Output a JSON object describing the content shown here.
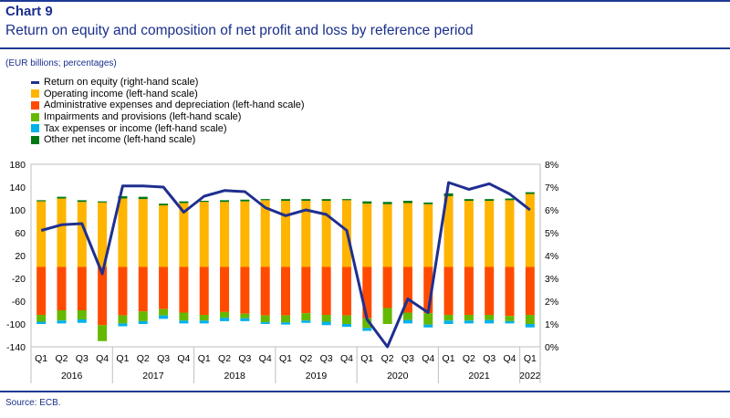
{
  "header": {
    "chart_label": "Chart 9",
    "title": "Return on equity and composition of net profit and loss by reference period",
    "units": "(EUR billions; percentages)"
  },
  "footer": {
    "source": "Source: ECB."
  },
  "colors": {
    "roe": "#1f2f8f",
    "operating_income": "#ffb400",
    "admin_expenses": "#ff4b00",
    "impairments": "#65b800",
    "tax": "#00b1ea",
    "other": "#007816",
    "rule": "#1f3a93"
  },
  "chart_data": {
    "type": "bar",
    "stacked": true,
    "legend_position": "top-left",
    "grid": false,
    "left_axis": {
      "ylim": [
        -140,
        180
      ],
      "ticks": [
        "180",
        "140",
        "100",
        "60",
        "20",
        "-20",
        "-60",
        "-100",
        "-140"
      ]
    },
    "right_axis": {
      "ylim": [
        0,
        8
      ],
      "ticks": [
        "8%",
        "7%",
        "6%",
        "5%",
        "4%",
        "3%",
        "2%",
        "1%",
        "0%"
      ]
    },
    "categories": [
      "Q1",
      "Q2",
      "Q3",
      "Q4",
      "Q1",
      "Q2",
      "Q3",
      "Q4",
      "Q1",
      "Q2",
      "Q3",
      "Q4",
      "Q1",
      "Q2",
      "Q3",
      "Q4",
      "Q1",
      "Q2",
      "Q3",
      "Q4",
      "Q1",
      "Q2",
      "Q3",
      "Q4",
      "Q1"
    ],
    "years": [
      {
        "label": "2016",
        "span": 4
      },
      {
        "label": "2017",
        "span": 4
      },
      {
        "label": "2018",
        "span": 4
      },
      {
        "label": "2019",
        "span": 4
      },
      {
        "label": "2020",
        "span": 4
      },
      {
        "label": "2021",
        "span": 4
      },
      {
        "label": "2022",
        "span": 1
      }
    ],
    "series": [
      {
        "name": "Return on equity (right-hand scale)",
        "kind": "line",
        "axis": "right",
        "values": [
          5.1,
          5.35,
          5.4,
          3.2,
          7.05,
          7.05,
          7.0,
          5.9,
          6.6,
          6.85,
          6.8,
          6.1,
          5.75,
          6.0,
          5.8,
          5.1,
          1.2,
          0.0,
          2.1,
          1.5,
          7.2,
          6.9,
          7.15,
          6.7,
          6.0
        ]
      },
      {
        "name": "Operating income (left-hand scale)",
        "kind": "bar",
        "values": [
          115,
          120,
          114,
          113,
          120,
          119,
          108,
          112,
          114,
          114,
          115,
          117,
          116,
          116,
          116,
          117,
          111,
          110,
          112,
          110,
          124,
          116,
          116,
          117,
          128
        ]
      },
      {
        "name": "Administrative expenses and depreciation (left-hand scale)",
        "kind": "bar",
        "values": [
          -84,
          -76,
          -76,
          -102,
          -85,
          -78,
          -74,
          -80,
          -84,
          -79,
          -82,
          -85,
          -85,
          -81,
          -84,
          -85,
          -90,
          -72,
          -80,
          -81,
          -84,
          -84,
          -84,
          -86,
          -84
        ]
      },
      {
        "name": "Impairments and provisions (left-hand scale)",
        "kind": "bar",
        "values": [
          -12,
          -18,
          -16,
          -28,
          -14,
          -17,
          -11,
          -14,
          -10,
          -10,
          -8,
          -12,
          -12,
          -13,
          -12,
          -15,
          -17,
          -28,
          -13,
          -20,
          -10,
          -10,
          -9,
          -9,
          -16
        ]
      },
      {
        "name": "Tax expenses or income (left-hand scale)",
        "kind": "bar",
        "values": [
          -4,
          -5,
          -6,
          0,
          -5,
          -5,
          -6,
          -5,
          -5,
          -6,
          -5,
          -3,
          -4,
          -4,
          -6,
          -5,
          -5,
          0,
          -6,
          -5,
          -6,
          -5,
          -6,
          -4,
          -6
        ]
      },
      {
        "name": "Other net income (left-hand scale)",
        "kind": "bar",
        "values": [
          2,
          3,
          3,
          2,
          4,
          4,
          3,
          3,
          2,
          3,
          3,
          2,
          3,
          3,
          3,
          2,
          4,
          4,
          4,
          3,
          5,
          3,
          3,
          3,
          3
        ]
      }
    ]
  }
}
